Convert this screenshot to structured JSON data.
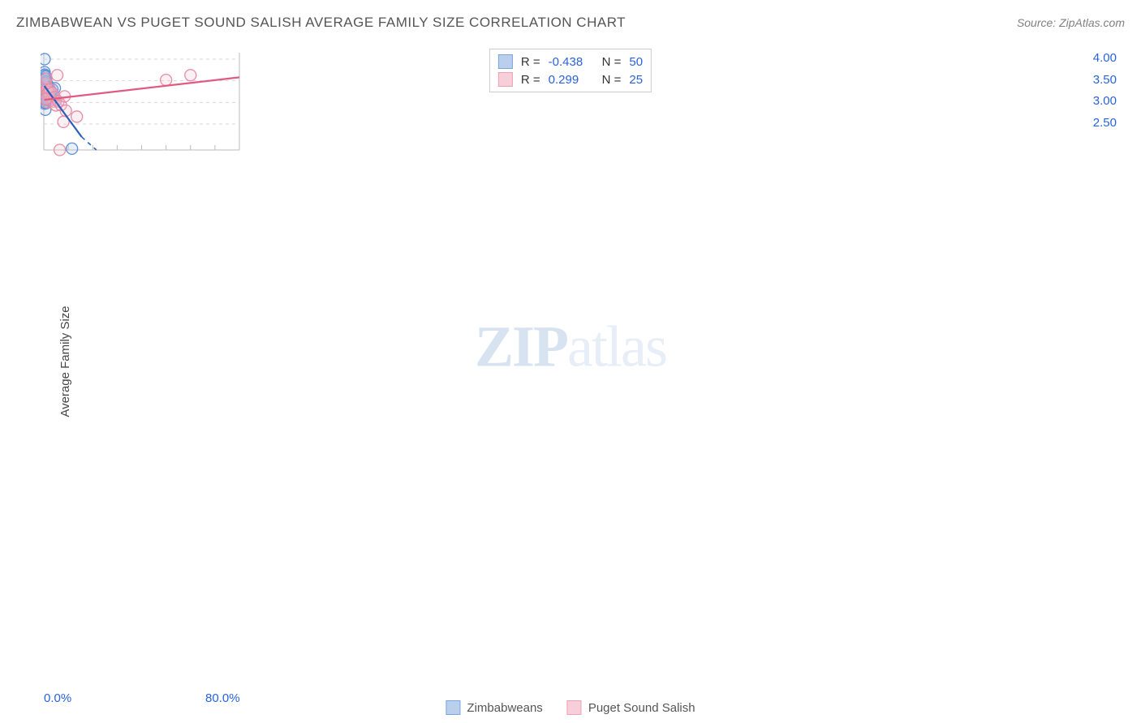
{
  "title": "ZIMBABWEAN VS PUGET SOUND SALISH AVERAGE FAMILY SIZE CORRELATION CHART",
  "source_label": "Source: ZipAtlas.com",
  "y_axis_label": "Average Family Size",
  "watermark_prefix": "ZIP",
  "watermark_suffix": "atlas",
  "chart": {
    "type": "scatter",
    "background_color": "#ffffff",
    "grid_color": "#d8d8d8",
    "grid_dash": "4,4",
    "axis_color": "#bbbbbb",
    "xlim": [
      0,
      80
    ],
    "ylim": [
      1.9,
      4.15
    ],
    "x_ticks": [
      0,
      10,
      20,
      30,
      40,
      50,
      60,
      70,
      80
    ],
    "x_labels": {
      "0": "0.0%",
      "80": "80.0%"
    },
    "y_ticks": [
      2.5,
      3.0,
      3.5,
      4.0
    ],
    "y_labels": {
      "2.5": "2.50",
      "3.0": "3.00",
      "3.5": "3.50",
      "4.0": "4.00"
    },
    "marker_radius": 7,
    "marker_stroke_width": 1.3,
    "marker_fill_opacity": 0.25,
    "trend_width": 2.2,
    "series": [
      {
        "name": "Zimbabweans",
        "color_stroke": "#5b8fd6",
        "color_fill": "#a9c4e8",
        "trend_color": "#2a5fb8",
        "R": "-0.438",
        "N": "50",
        "trend": {
          "x1": 0.2,
          "y1": 3.38,
          "x2": 15.5,
          "y2": 2.2,
          "dash_after_x": 15.5,
          "dash_x2": 21.5,
          "dash_y2": 1.9
        },
        "points": [
          [
            0.1,
            3.31
          ],
          [
            0.1,
            3.62
          ],
          [
            0.1,
            3.48
          ],
          [
            0.1,
            3.22
          ],
          [
            0.1,
            3.12
          ],
          [
            0.2,
            3.29
          ],
          [
            0.2,
            2.97
          ],
          [
            0.2,
            3.4
          ],
          [
            0.3,
            3.7
          ],
          [
            0.3,
            4.0
          ],
          [
            0.3,
            3.51
          ],
          [
            0.3,
            3.35
          ],
          [
            0.4,
            3.64
          ],
          [
            0.5,
            3.08
          ],
          [
            0.5,
            3.24
          ],
          [
            0.5,
            3.14
          ],
          [
            0.6,
            3.38
          ],
          [
            0.6,
            2.83
          ],
          [
            0.7,
            3.16
          ],
          [
            0.7,
            3.4
          ],
          [
            0.8,
            3.05
          ],
          [
            0.8,
            3.45
          ],
          [
            0.9,
            3.1
          ],
          [
            0.9,
            3.36
          ],
          [
            1.0,
            3.2
          ],
          [
            1.0,
            2.98
          ],
          [
            1.0,
            3.48
          ],
          [
            1.1,
            3.24
          ],
          [
            1.2,
            3.15
          ],
          [
            1.3,
            3.08
          ],
          [
            1.5,
            3.41
          ],
          [
            1.6,
            3.12
          ],
          [
            1.8,
            3.25
          ],
          [
            1.8,
            3.05
          ],
          [
            2.0,
            3.31
          ],
          [
            2.3,
            3.22
          ],
          [
            2.5,
            3.15
          ],
          [
            2.8,
            3.24
          ],
          [
            3.0,
            3.1
          ],
          [
            3.5,
            3.3
          ],
          [
            4.5,
            3.33
          ],
          [
            5.0,
            3.05
          ],
          [
            0.2,
            3.18
          ],
          [
            0.4,
            3.0
          ],
          [
            0.6,
            3.26
          ],
          [
            0.7,
            3.6
          ],
          [
            0.5,
            3.55
          ],
          [
            1.4,
            3.35
          ],
          [
            1.9,
            3.18
          ],
          [
            11.5,
            1.93
          ]
        ]
      },
      {
        "name": "Puget Sound Salish",
        "color_stroke": "#e88ba5",
        "color_fill": "#f5c4d2",
        "trend_color": "#e05a82",
        "R": "0.299",
        "N": "25",
        "trend": {
          "x1": 0.2,
          "y1": 3.06,
          "x2": 80,
          "y2": 3.58
        },
        "points": [
          [
            0.5,
            3.22
          ],
          [
            0.6,
            3.35
          ],
          [
            0.8,
            3.44
          ],
          [
            1.0,
            3.55
          ],
          [
            1.2,
            3.3
          ],
          [
            1.4,
            3.2
          ],
          [
            1.5,
            3.0
          ],
          [
            2.0,
            3.24
          ],
          [
            2.5,
            3.3
          ],
          [
            3.0,
            3.05
          ],
          [
            3.5,
            3.22
          ],
          [
            4.0,
            3.02
          ],
          [
            4.5,
            3.12
          ],
          [
            5.0,
            2.93
          ],
          [
            5.5,
            3.63
          ],
          [
            6.0,
            3.02
          ],
          [
            7.0,
            2.94
          ],
          [
            8.0,
            2.55
          ],
          [
            8.5,
            3.14
          ],
          [
            9.0,
            2.81
          ],
          [
            13.5,
            2.67
          ],
          [
            6.5,
            1.9
          ],
          [
            50.0,
            3.52
          ],
          [
            60.0,
            3.63
          ],
          [
            0.9,
            3.08
          ]
        ]
      }
    ]
  },
  "stats_box": {
    "r_label": "R =",
    "n_label": "N ="
  },
  "legend": {
    "items": [
      "Zimbabweans",
      "Puget Sound Salish"
    ]
  }
}
